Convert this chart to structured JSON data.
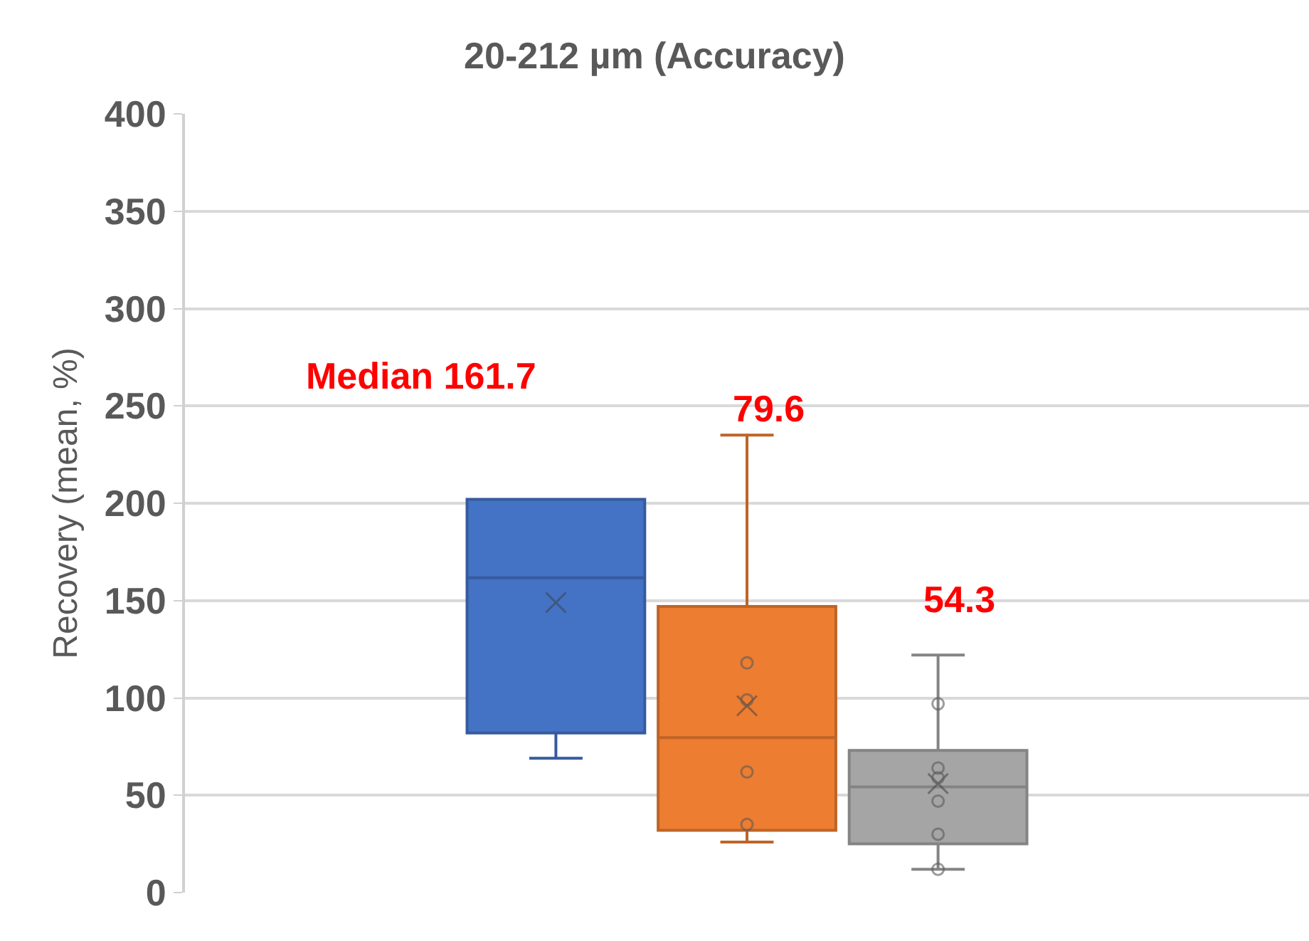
{
  "chart_data": {
    "type": "box",
    "title": "20-212 µm (Accuracy)",
    "ylabel": "Recovery (mean, %)",
    "categories": [
      null
    ],
    "series": [
      {
        "color": "#4472c4",
        "boxes": [
          {
            "low": 69,
            "q1": 82,
            "median": 161.7,
            "q3": 202,
            "high": 202,
            "mean": 149
          }
        ]
      },
      {
        "color": "#ed7d31",
        "boxes": [
          {
            "low": 26,
            "q1": 32,
            "median": 79.6,
            "q3": 147,
            "high": 235,
            "mean": 96,
            "outliers": [
              118,
              99,
              62,
              35
            ]
          }
        ]
      },
      {
        "color": "#a5a5a5",
        "boxes": [
          {
            "low": 12,
            "q1": 25,
            "median": 54.3,
            "q3": 73,
            "high": 122,
            "mean": 56,
            "outliers": [
              97,
              64,
              59,
              47,
              30,
              12
            ]
          }
        ]
      }
    ],
    "annotations": [
      "Median 161.7",
      "79.6",
      "54.3"
    ],
    "ylim": [
      0,
      400
    ],
    "yticks": [
      0,
      50,
      100,
      150,
      200,
      250,
      300,
      350,
      400
    ],
    "grid": "y",
    "marker": "circle"
  }
}
